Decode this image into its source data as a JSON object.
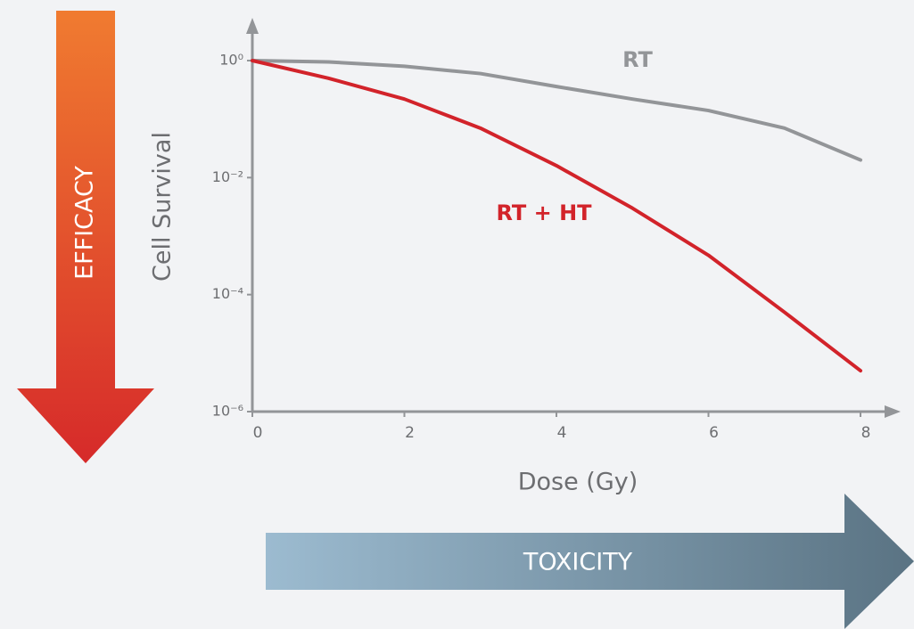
{
  "chart_data": {
    "type": "line",
    "log_y": true,
    "y_label": "Cell Survival",
    "x_label": "Dose (Gy)",
    "annotations": {
      "efficacy": "EFFICACY",
      "toxicity": "TOXICITY"
    },
    "x": [
      0,
      1,
      2,
      3,
      4,
      5,
      6,
      7,
      8
    ],
    "series": [
      {
        "name": "RT",
        "color": "#939598",
        "values": [
          1,
          0.95,
          0.8,
          0.6,
          0.36,
          0.22,
          0.14,
          0.07,
          0.02
        ]
      },
      {
        "name": "RT + HT",
        "color": "#d2232a",
        "values": [
          1,
          0.5,
          0.22,
          0.07,
          0.016,
          0.003,
          0.00047,
          5e-05,
          5e-06
        ]
      }
    ],
    "xlim": [
      0,
      8
    ],
    "xticks": [
      0,
      2,
      4,
      6,
      8
    ],
    "ylim": [
      1e-06,
      1
    ],
    "yticks": [
      {
        "value": 1,
        "label": "10⁰"
      },
      {
        "value": 0.01,
        "label": "10⁻²"
      },
      {
        "value": 0.0001,
        "label": "10⁻⁴"
      },
      {
        "value": 1e-06,
        "label": "10⁻⁶"
      }
    ]
  }
}
